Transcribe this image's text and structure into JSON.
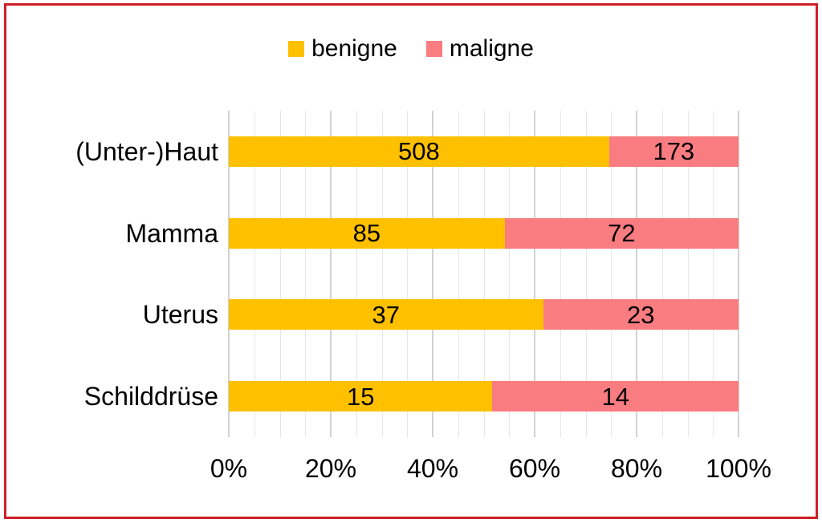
{
  "frame": {
    "background": "#FFFFFF",
    "border_color": "#CD2026"
  },
  "legend": {
    "position": "top-center",
    "items": [
      {
        "label": "benigne",
        "color": "#FFC000"
      },
      {
        "label": "maligne",
        "color": "#F97C80"
      }
    ]
  },
  "chart_data": {
    "type": "bar",
    "subtype": "100pct-stacked-horizontal",
    "title": "",
    "categories": [
      "(Unter-)Haut",
      "Mamma",
      "Uterus",
      "Schilddrüse"
    ],
    "series": [
      {
        "name": "benigne",
        "color": "#FFC000",
        "values": [
          508,
          85,
          37,
          15
        ]
      },
      {
        "name": "maligne",
        "color": "#F97C80",
        "values": [
          173,
          72,
          23,
          14
        ]
      }
    ],
    "value_labels": "inside-center",
    "x_tick_labels": [
      "0%",
      "20%",
      "40%",
      "60%",
      "80%",
      "100%"
    ],
    "xlim": [
      0,
      100
    ],
    "grid": {
      "minor_step_pct": 5,
      "major_step_pct": 20,
      "minor_color": "#E6E6E6",
      "major_color": "#D2D2D2"
    },
    "legend_position": "top"
  }
}
